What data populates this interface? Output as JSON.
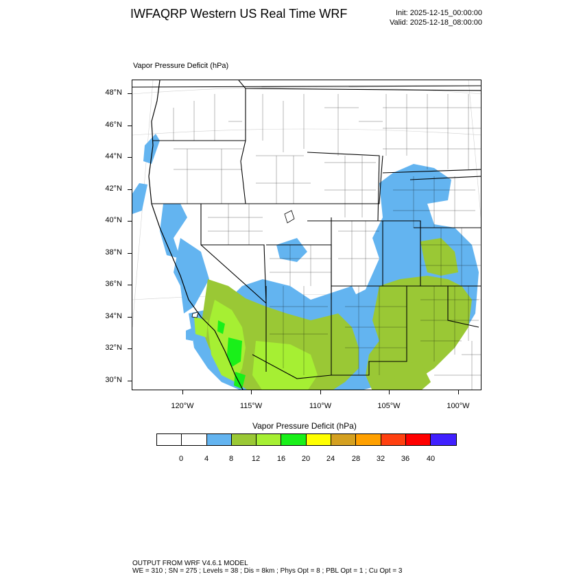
{
  "header": {
    "title": "IWFAQRP Western US Real Time WRF",
    "init": "Init: 2025-12-15_00:00:00",
    "valid": "Valid: 2025-12-18_08:00:00"
  },
  "map": {
    "subtitle": "Vapor Pressure Deficit   (hPa)",
    "lat_labels": [
      "48°N",
      "46°N",
      "44°N",
      "42°N",
      "40°N",
      "38°N",
      "36°N",
      "34°N",
      "32°N",
      "30°N"
    ],
    "lon_labels": [
      "120°W",
      "115°W",
      "110°W",
      "105°W",
      "100°W"
    ],
    "colors": {
      "lt4": "#ffffff",
      "c4_8": "#63b4f0",
      "c8_12": "#9ac835",
      "c12_16": "#a6ef33",
      "c16_20": "#19f019"
    }
  },
  "colorbar": {
    "title": "Vapor Pressure Deficit  (hPa)",
    "colors": [
      "#ffffff",
      "#ffffff",
      "#63b4f0",
      "#9ac835",
      "#a6ef33",
      "#19f019",
      "#ffff00",
      "#d4a020",
      "#ffa000",
      "#ff4010",
      "#ff0000",
      "#4020ff"
    ],
    "labels": [
      "0",
      "4",
      "8",
      "12",
      "16",
      "20",
      "24",
      "28",
      "32",
      "36",
      "40"
    ]
  },
  "footer": {
    "line1": "OUTPUT FROM WRF V4.6.1 MODEL",
    "line2": "WE = 310 ; SN = 275 ; Levels = 38 ; Dis = 8km ; Phys Opt = 8 ; PBL Opt = 1 ; Cu Opt = 3"
  }
}
